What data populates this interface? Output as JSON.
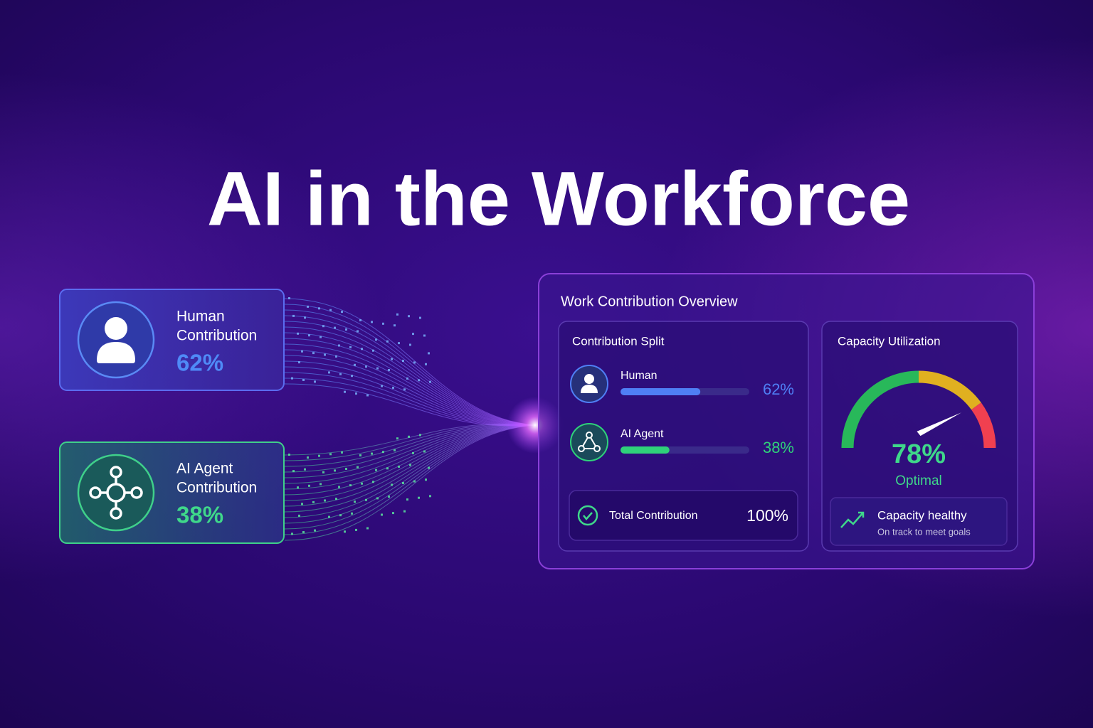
{
  "title": "AI in the Workforce",
  "cards": [
    {
      "label_lines": [
        "Human",
        "Contribution"
      ],
      "value": "62%"
    },
    {
      "label_lines": [
        "AI Agent",
        "Contribution"
      ],
      "value": "38%"
    }
  ],
  "panel": {
    "title": "Work Contribution Overview",
    "split": {
      "title": "Contribution Split",
      "rows": [
        {
          "name": "Human",
          "value": 62,
          "value_label": "62%",
          "color": "#4f7ff5"
        },
        {
          "name": "AI Agent",
          "value": 38,
          "value_label": "38%",
          "color": "#2fd27a"
        }
      ],
      "total": {
        "label": "Total Contribution",
        "value": 100,
        "value_label": "100%"
      }
    },
    "capacity": {
      "title": "Capacity Utilization",
      "value": 78,
      "value_label": "78%",
      "status": "Optimal",
      "note_title": "Capacity healthy",
      "note_text": "On track to meet goals"
    }
  }
}
